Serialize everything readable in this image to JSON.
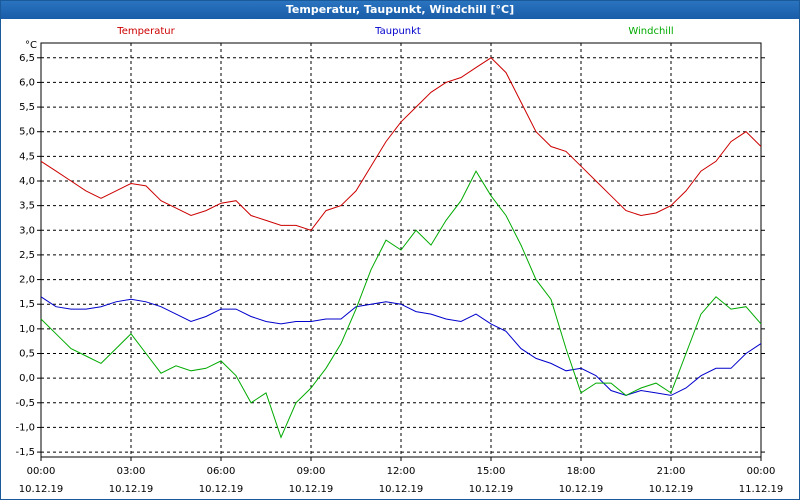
{
  "window": {
    "title": "Temperatur, Taupunkt, Windchill [°C]"
  },
  "chart_data": {
    "type": "line",
    "title": "Temperatur, Taupunkt, Windchill [°C]",
    "y_unit": "°C",
    "ylim": [
      -1.6,
      6.8
    ],
    "y_ticks": [
      -1.5,
      -1.0,
      -0.5,
      0.0,
      0.5,
      1.0,
      1.5,
      2.0,
      2.5,
      3.0,
      3.5,
      4.0,
      4.5,
      5.0,
      5.5,
      6.0,
      6.5
    ],
    "y_tick_labels": [
      "-1,5",
      "-1,0",
      "-0,5",
      "0,0",
      "0,5",
      "1,0",
      "1,5",
      "2,0",
      "2,5",
      "3,0",
      "3,5",
      "4,0",
      "4,5",
      "5,0",
      "5,5",
      "6,0",
      "6,5"
    ],
    "x_ticks": [
      {
        "time": "00:00",
        "date": "10.12.19"
      },
      {
        "time": "03:00",
        "date": "10.12.19"
      },
      {
        "time": "06:00",
        "date": "10.12.19"
      },
      {
        "time": "09:00",
        "date": "10.12.19"
      },
      {
        "time": "12:00",
        "date": "10.12.19"
      },
      {
        "time": "15:00",
        "date": "10.12.19"
      },
      {
        "time": "18:00",
        "date": "10.12.19"
      },
      {
        "time": "21:00",
        "date": "10.12.19"
      },
      {
        "time": "00:00",
        "date": "11.12.19"
      }
    ],
    "x_range_hours": [
      0,
      24
    ],
    "grid": true,
    "legend_position": "top",
    "series": [
      {
        "name": "Temperatur",
        "color": "#cc0000",
        "x": [
          0,
          0.5,
          1,
          1.5,
          2,
          2.5,
          3,
          3.5,
          4,
          4.5,
          5,
          5.5,
          6,
          6.5,
          7,
          7.5,
          8,
          8.5,
          9,
          9.5,
          10,
          10.5,
          11,
          11.5,
          12,
          12.5,
          13,
          13.5,
          14,
          14.5,
          15,
          15.5,
          16,
          16.5,
          17,
          17.5,
          18,
          18.5,
          19,
          19.5,
          20,
          20.5,
          21,
          21.5,
          22,
          22.5,
          23,
          23.5,
          24
        ],
        "y": [
          4.4,
          4.2,
          4.0,
          3.8,
          3.65,
          3.8,
          3.95,
          3.9,
          3.6,
          3.45,
          3.3,
          3.4,
          3.55,
          3.6,
          3.3,
          3.2,
          3.1,
          3.1,
          3.0,
          3.4,
          3.5,
          3.8,
          4.3,
          4.8,
          5.2,
          5.5,
          5.8,
          6.0,
          6.1,
          6.3,
          6.5,
          6.2,
          5.6,
          5.0,
          4.7,
          4.6,
          4.3,
          4.0,
          3.7,
          3.4,
          3.3,
          3.35,
          3.5,
          3.8,
          4.2,
          4.4,
          4.8,
          5.0,
          4.7
        ]
      },
      {
        "name": "Taupunkt",
        "color": "#0000cc",
        "x": [
          0,
          0.5,
          1,
          1.5,
          2,
          2.5,
          3,
          3.5,
          4,
          4.5,
          5,
          5.5,
          6,
          6.5,
          7,
          7.5,
          8,
          8.5,
          9,
          9.5,
          10,
          10.5,
          11,
          11.5,
          12,
          12.5,
          13,
          13.5,
          14,
          14.5,
          15,
          15.5,
          16,
          16.5,
          17,
          17.5,
          18,
          18.5,
          19,
          19.5,
          20,
          20.5,
          21,
          21.5,
          22,
          22.5,
          23,
          23.5,
          24
        ],
        "y": [
          1.65,
          1.45,
          1.4,
          1.4,
          1.45,
          1.55,
          1.6,
          1.55,
          1.45,
          1.3,
          1.15,
          1.25,
          1.4,
          1.4,
          1.25,
          1.15,
          1.1,
          1.15,
          1.15,
          1.2,
          1.2,
          1.45,
          1.5,
          1.55,
          1.5,
          1.35,
          1.3,
          1.2,
          1.15,
          1.3,
          1.1,
          0.95,
          0.6,
          0.4,
          0.3,
          0.15,
          0.2,
          0.05,
          -0.25,
          -0.35,
          -0.25,
          -0.3,
          -0.35,
          -0.2,
          0.05,
          0.2,
          0.2,
          0.5,
          0.7
        ]
      },
      {
        "name": "Windchill",
        "color": "#00aa00",
        "x": [
          0,
          0.5,
          1,
          1.5,
          2,
          2.5,
          3,
          3.5,
          4,
          4.5,
          5,
          5.5,
          6,
          6.5,
          7,
          7.5,
          8,
          8.5,
          9,
          9.5,
          10,
          10.5,
          11,
          11.5,
          12,
          12.5,
          13,
          13.5,
          14,
          14.5,
          15,
          15.5,
          16,
          16.5,
          17,
          17.5,
          18,
          18.5,
          19,
          19.5,
          20,
          20.5,
          21,
          21.5,
          22,
          22.5,
          23,
          23.5,
          24
        ],
        "y": [
          1.2,
          0.9,
          0.6,
          0.45,
          0.3,
          0.6,
          0.9,
          0.5,
          0.1,
          0.25,
          0.15,
          0.2,
          0.35,
          0.05,
          -0.5,
          -0.3,
          -1.2,
          -0.5,
          -0.2,
          0.2,
          0.7,
          1.4,
          2.2,
          2.8,
          2.6,
          3.0,
          2.7,
          3.2,
          3.6,
          4.2,
          3.7,
          3.3,
          2.7,
          2.0,
          1.6,
          0.6,
          -0.3,
          -0.1,
          -0.1,
          -0.35,
          -0.2,
          -0.1,
          -0.3,
          0.5,
          1.3,
          1.65,
          1.4,
          1.45,
          1.1
        ]
      }
    ]
  }
}
